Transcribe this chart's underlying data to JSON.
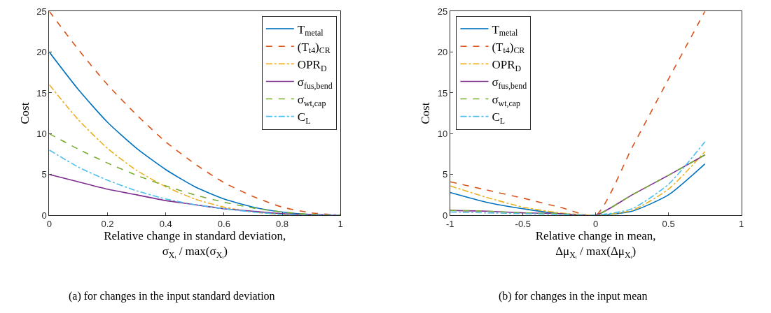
{
  "chart_data": [
    {
      "type": "line",
      "ylabel": "Cost",
      "xlabel": "Relative change in standard deviation,\nσ$_{Xᵢ}$ / max(σ$_{Xᵢ}$)",
      "annotations": [
        "(a) for changes in the input standard deviation"
      ],
      "x": [
        0,
        0.1,
        0.2,
        0.3,
        0.4,
        0.5,
        0.6,
        0.7,
        0.8,
        0.9,
        1
      ],
      "xlim": [
        0,
        1
      ],
      "xticks": [
        0,
        0.2,
        0.4,
        0.6,
        0.8,
        1
      ],
      "ylim": [
        0,
        25
      ],
      "yticks": [
        0,
        5,
        10,
        15,
        20,
        25
      ],
      "legend": "top right",
      "series": [
        {
          "name": "T$_{metal}$",
          "color": "#0072bd",
          "line_style": "solid",
          "values": [
            20,
            15.4,
            11.4,
            8.2,
            5.6,
            3.5,
            2.0,
            1.0,
            0.4,
            0.1,
            0
          ]
        },
        {
          "name": "(T$_{t4}$)$_{CR}$",
          "color": "#d95319",
          "line_style": "dashed",
          "values": [
            25,
            20.3,
            16,
            12.3,
            9,
            6.3,
            4,
            2.3,
            1,
            0.3,
            0
          ]
        },
        {
          "name": "OPR$_{D}$",
          "color": "#edb120",
          "line_style": "dashdot",
          "values": [
            16,
            11.7,
            8.2,
            5.5,
            3.5,
            2,
            1,
            0.4,
            0.1,
            0,
            0
          ]
        },
        {
          "name": "σ$_{fus,bend}$",
          "color": "#7e2f8e",
          "line_style": "solid",
          "values": [
            5,
            4.1,
            3.2,
            2.5,
            1.8,
            1.3,
            0.8,
            0.5,
            0.2,
            0.1,
            0
          ]
        },
        {
          "name": "σ$_{wt,cap}$",
          "color": "#77ac30",
          "line_style": "dashed",
          "values": [
            10,
            8.1,
            6.4,
            4.9,
            3.6,
            2.5,
            1.6,
            0.9,
            0.4,
            0.1,
            0
          ]
        },
        {
          "name": "C$_{L}$",
          "color": "#4dbeee",
          "line_style": "dashdot",
          "values": [
            8,
            5.9,
            4.3,
            3,
            2.0,
            1.3,
            0.8,
            0.4,
            0.1,
            0,
            0
          ]
        }
      ]
    },
    {
      "type": "line",
      "ylabel": "Cost",
      "xlabel": "Relative change in mean,\nΔμ$_{Xᵢ}$ / max(Δμ$_{Xᵢ}$)",
      "annotations": [
        "(b) for changes in the input mean"
      ],
      "x": [
        -1,
        -0.75,
        -0.5,
        -0.25,
        0,
        0.25,
        0.5,
        0.75
      ],
      "xlim": [
        -1,
        1
      ],
      "xticks": [
        -1,
        -0.5,
        0,
        0.5,
        1
      ],
      "ylim": [
        0,
        25
      ],
      "yticks": [
        0,
        5,
        10,
        15,
        20,
        25
      ],
      "legend": "top left",
      "series": [
        {
          "name": "T$_{metal}$",
          "color": "#0072bd",
          "line_style": "solid",
          "values": [
            2.8,
            1.6,
            0.8,
            0.2,
            0,
            0.5,
            2.5,
            6.3
          ]
        },
        {
          "name": "(T$_{t4}$)$_{CR}$",
          "color": "#d95319",
          "line_style": "dashed",
          "values": [
            4.1,
            3.1,
            2.1,
            1.0,
            0,
            8.3,
            16.7,
            25
          ]
        },
        {
          "name": "OPR$_{D}$",
          "color": "#edb120",
          "line_style": "dashdot",
          "values": [
            3.6,
            2.2,
            1.0,
            0.3,
            0,
            0.6,
            3.2,
            7.8
          ]
        },
        {
          "name": "σ$_{fus,bend}$",
          "color": "#7e2f8e",
          "line_style": "solid",
          "values": [
            0.6,
            0.5,
            0.3,
            0.2,
            0,
            2.5,
            4.9,
            7.4
          ]
        },
        {
          "name": "σ$_{wt,cap}$",
          "color": "#77ac30",
          "line_style": "dashed",
          "values": [
            0.6,
            0.5,
            0.3,
            0.2,
            0,
            2.5,
            4.9,
            7.4
          ]
        },
        {
          "name": "C$_{L}$",
          "color": "#4dbeee",
          "line_style": "dashdot",
          "values": [
            0.4,
            0.3,
            0.2,
            0.1,
            0,
            0.8,
            3.8,
            9
          ]
        }
      ]
    }
  ]
}
